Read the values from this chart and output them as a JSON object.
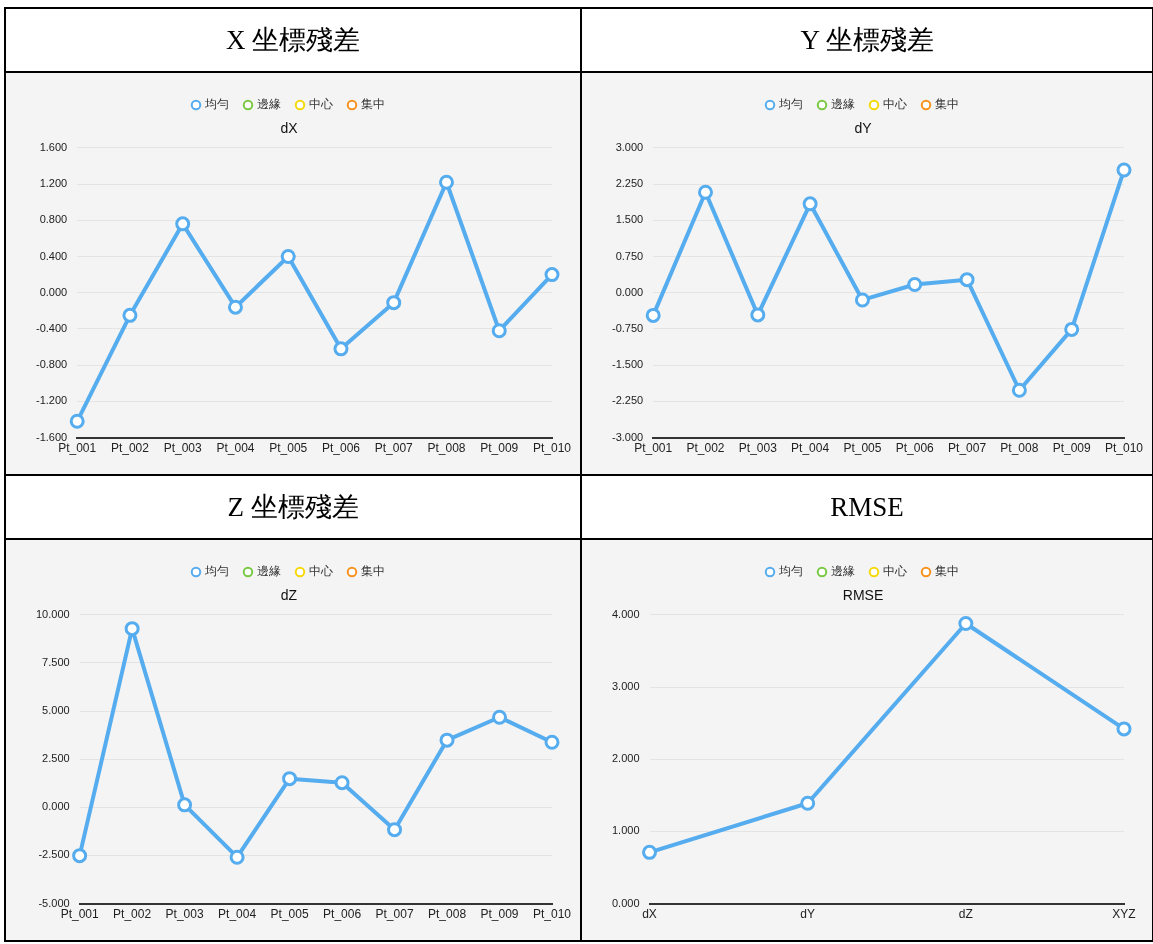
{
  "chart_data": [
    {
      "type": "line",
      "title": "X 坐標殘差",
      "subtitle": "dX",
      "categories": [
        "Pt_001",
        "Pt_002",
        "Pt_003",
        "Pt_004",
        "Pt_005",
        "Pt_006",
        "Pt_007",
        "Pt_008",
        "Pt_009",
        "Pt_010"
      ],
      "series": [
        {
          "name": "均勻",
          "color": "#55acee",
          "values": [
            -1.42,
            -0.25,
            0.76,
            -0.16,
            0.4,
            -0.62,
            -0.11,
            1.22,
            -0.42,
            0.2
          ]
        },
        {
          "name": "邊緣",
          "color": "#7ac943",
          "values": [
            null,
            null,
            null,
            null,
            null,
            null,
            null,
            null,
            null,
            null
          ]
        },
        {
          "name": "中心",
          "color": "#f5d90a",
          "values": [
            null,
            null,
            null,
            null,
            null,
            null,
            null,
            null,
            null,
            null
          ]
        },
        {
          "name": "集中",
          "color": "#f7931e",
          "values": [
            null,
            null,
            null,
            null,
            null,
            null,
            null,
            null,
            null,
            null
          ]
        }
      ],
      "ylim": [
        -1.6,
        1.6
      ],
      "yticks": [
        {
          "value": -1.6,
          "label": "-1.600"
        },
        {
          "value": -1.2,
          "label": "-1.200"
        },
        {
          "value": -0.8,
          "label": "-0.800"
        },
        {
          "value": -0.4,
          "label": "-0.400"
        },
        {
          "value": 0,
          "label": "0.000"
        },
        {
          "value": 0.4,
          "label": "0.400"
        },
        {
          "value": 0.8,
          "label": "0.800"
        },
        {
          "value": 1.2,
          "label": "1.200"
        },
        {
          "value": 1.6,
          "label": "1.600"
        }
      ],
      "grid": "y",
      "legend": "top",
      "marker": "circle",
      "line_style": "solid"
    },
    {
      "type": "line",
      "title": "Y 坐標殘差",
      "subtitle": "dY",
      "categories": [
        "Pt_001",
        "Pt_002",
        "Pt_003",
        "Pt_004",
        "Pt_005",
        "Pt_006",
        "Pt_007",
        "Pt_008",
        "Pt_009",
        "Pt_010"
      ],
      "series": [
        {
          "name": "均勻",
          "color": "#55acee",
          "values": [
            -0.47,
            2.08,
            -0.46,
            1.84,
            -0.15,
            0.17,
            0.27,
            -2.02,
            -0.76,
            2.54
          ]
        },
        {
          "name": "邊緣",
          "color": "#7ac943",
          "values": [
            null,
            null,
            null,
            null,
            null,
            null,
            null,
            null,
            null,
            null
          ]
        },
        {
          "name": "中心",
          "color": "#f5d90a",
          "values": [
            null,
            null,
            null,
            null,
            null,
            null,
            null,
            null,
            null,
            null
          ]
        },
        {
          "name": "集中",
          "color": "#f7931e",
          "values": [
            null,
            null,
            null,
            null,
            null,
            null,
            null,
            null,
            null,
            null
          ]
        }
      ],
      "ylim": [
        -3,
        3
      ],
      "yticks": [
        {
          "value": -3,
          "label": "-3.000"
        },
        {
          "value": -2.25,
          "label": "-2.250"
        },
        {
          "value": -1.5,
          "label": "-1.500"
        },
        {
          "value": -0.75,
          "label": "-0.750"
        },
        {
          "value": 0,
          "label": "0.000"
        },
        {
          "value": 0.75,
          "label": "0.750"
        },
        {
          "value": 1.5,
          "label": "1.500"
        },
        {
          "value": 2.25,
          "label": "2.250"
        },
        {
          "value": 3,
          "label": "3.000"
        }
      ],
      "grid": "y",
      "legend": "top",
      "marker": "circle",
      "line_style": "solid"
    },
    {
      "type": "line",
      "title": "Z 坐標殘差",
      "subtitle": "dZ",
      "categories": [
        "Pt_001",
        "Pt_002",
        "Pt_003",
        "Pt_004",
        "Pt_005",
        "Pt_006",
        "Pt_007",
        "Pt_008",
        "Pt_009",
        "Pt_010"
      ],
      "series": [
        {
          "name": "均勻",
          "color": "#55acee",
          "values": [
            -2.51,
            9.28,
            0.13,
            -2.59,
            1.49,
            1.28,
            -1.16,
            3.49,
            4.68,
            3.38
          ]
        },
        {
          "name": "邊緣",
          "color": "#7ac943",
          "values": [
            null,
            null,
            null,
            null,
            null,
            null,
            null,
            null,
            null,
            null
          ]
        },
        {
          "name": "中心",
          "color": "#f5d90a",
          "values": [
            null,
            null,
            null,
            null,
            null,
            null,
            null,
            null,
            null,
            null
          ]
        },
        {
          "name": "集中",
          "color": "#f7931e",
          "values": [
            null,
            null,
            null,
            null,
            null,
            null,
            null,
            null,
            null,
            null
          ]
        }
      ],
      "ylim": [
        -5,
        10
      ],
      "yticks": [
        {
          "value": -5,
          "label": "-5.000"
        },
        {
          "value": -2.5,
          "label": "-2.500"
        },
        {
          "value": 0,
          "label": "0.000"
        },
        {
          "value": 2.5,
          "label": "2.500"
        },
        {
          "value": 5,
          "label": "5.000"
        },
        {
          "value": 7.5,
          "label": "7.500"
        },
        {
          "value": 10,
          "label": "10.000"
        }
      ],
      "grid": "y",
      "legend": "top",
      "marker": "circle",
      "line_style": "solid"
    },
    {
      "type": "line",
      "title": "RMSE",
      "subtitle": "RMSE",
      "categories": [
        "dX",
        "dY",
        "dZ",
        "XYZ"
      ],
      "series": [
        {
          "name": "均勻",
          "color": "#55acee",
          "values": [
            0.71,
            1.39,
            3.88,
            2.42
          ]
        },
        {
          "name": "邊緣",
          "color": "#7ac943",
          "values": [
            null,
            null,
            null,
            null
          ]
        },
        {
          "name": "中心",
          "color": "#f5d90a",
          "values": [
            null,
            null,
            null,
            null
          ]
        },
        {
          "name": "集中",
          "color": "#f7931e",
          "values": [
            null,
            null,
            null,
            null
          ]
        }
      ],
      "ylim": [
        0,
        4
      ],
      "yticks": [
        {
          "value": 0,
          "label": "0.000"
        },
        {
          "value": 1,
          "label": "1.000"
        },
        {
          "value": 2,
          "label": "2.000"
        },
        {
          "value": 3,
          "label": "3.000"
        },
        {
          "value": 4,
          "label": "4.000"
        }
      ],
      "grid": "y",
      "legend": "top",
      "marker": "circle",
      "line_style": "solid"
    }
  ]
}
